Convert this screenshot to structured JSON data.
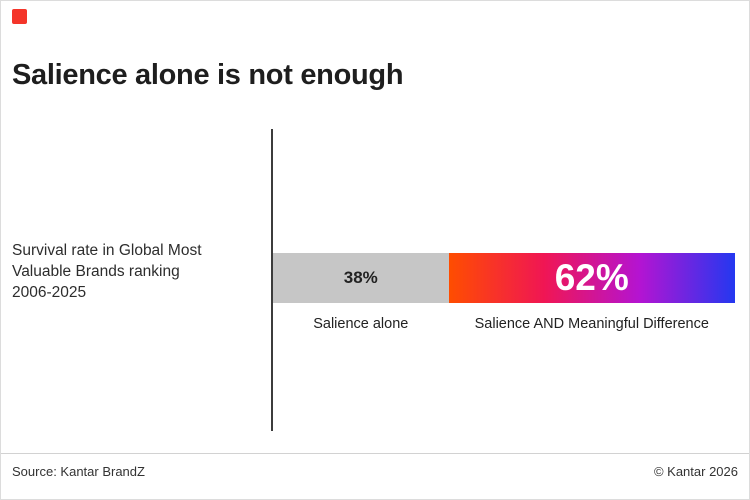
{
  "page": {
    "background": "#ffffff",
    "logo_color": "#f4352a"
  },
  "header": {
    "title": "Salience alone is not enough"
  },
  "chart": {
    "row_label": "Survival rate in Global Most\nValuable Brands ranking\n2006-2025"
  },
  "footer": {
    "source": "Source: Kantar BrandZ",
    "copyright": "© Kantar 2026"
  },
  "chart_data": {
    "type": "bar",
    "orientation": "horizontal",
    "stacked": true,
    "title": "Salience alone is not enough",
    "category": "Survival rate in Global Most Valuable Brands ranking 2006-2025",
    "unit": "%",
    "xlim": [
      0,
      100
    ],
    "grid": false,
    "legend_position": "below-bar",
    "series": [
      {
        "name": "Salience alone",
        "values": [
          38
        ],
        "data_label": "38%",
        "color": "#c6c6c6",
        "label_color": "#222222"
      },
      {
        "name": "Salience AND Meaningful Difference",
        "values": [
          62
        ],
        "data_label": "62%",
        "gradient": [
          "#ff4d00",
          "#f01654",
          "#b414d2",
          "#2438f0"
        ],
        "label_color": "#ffffff"
      }
    ]
  }
}
